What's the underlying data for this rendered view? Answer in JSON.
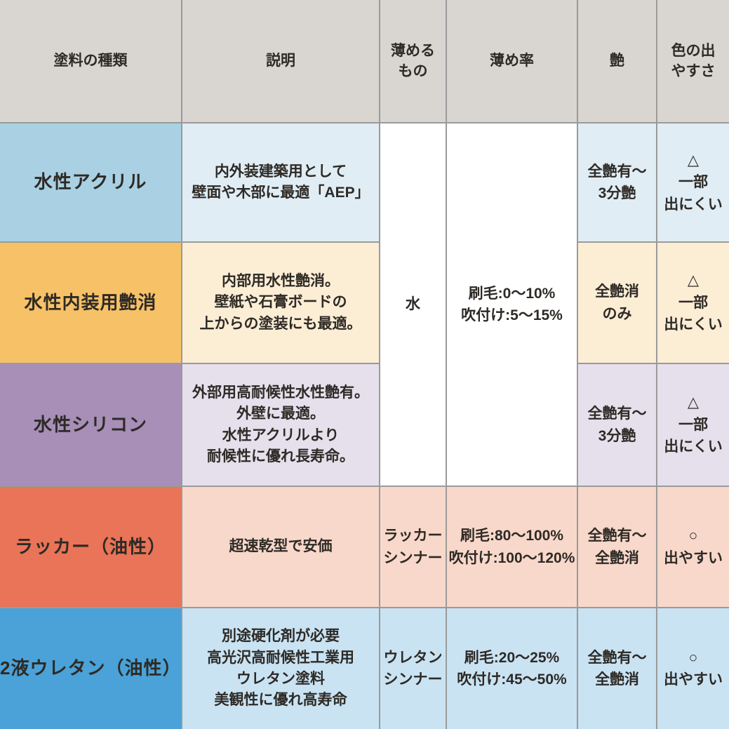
{
  "colors": {
    "border": "#9a9a9a",
    "header_bg": "#d9d6d1",
    "white_cell_bg": "#ffffff"
  },
  "header": {
    "paint_type": "塗料の種類",
    "description": "説明",
    "thinner": "薄める\nもの",
    "dilution_rate": "薄め率",
    "gloss": "艶",
    "color_ease": "色の出\nやすさ"
  },
  "merged_water_group": {
    "thinner": "水",
    "dilution_rate": "刷毛:0～10%\n吹付け:5～15%"
  },
  "rows": [
    {
      "name": "水性アクリル",
      "description": "内外装建築用として\n壁面や木部に最適「AEP」",
      "gloss": "全艶有～\n3分艶",
      "color_ease": "△\n一部\n出にくい",
      "colors": {
        "name_bg": "#a9d1e3",
        "light_bg": "#e0edf4"
      }
    },
    {
      "name": "水性内装用艶消",
      "description": "内部用水性艶消。\n壁紙や石膏ボードの\n上からの塗装にも最適。",
      "gloss": "全艶消\nのみ",
      "color_ease": "△\n一部\n出にくい",
      "colors": {
        "name_bg": "#f7c167",
        "light_bg": "#fcedd5"
      }
    },
    {
      "name": "水性シリコン",
      "description": "外部用高耐候性水性艶有。\n外壁に最適。\n水性アクリルより\n耐候性に優れ長寿命。",
      "gloss": "全艶有～\n3分艶",
      "color_ease": "△\n一部\n出にくい",
      "colors": {
        "name_bg": "#a78fb8",
        "light_bg": "#e6e0ec"
      }
    },
    {
      "name": "ラッカー（油性）",
      "description": "超速乾型で安価",
      "thinner": "ラッカー\nシンナー",
      "dilution_rate": "刷毛:80～100%\n吹付け:100～120%",
      "gloss": "全艶有～\n全艶消",
      "color_ease": "○\n出やすい",
      "colors": {
        "name_bg": "#e97457",
        "light_bg": "#f8d8ca"
      }
    },
    {
      "name": "2液ウレタン（油性）",
      "description": "別途硬化剤が必要\n高光沢高耐候性工業用\nウレタン塗料\n美観性に優れ高寿命",
      "thinner": "ウレタン\nシンナー",
      "dilution_rate": "刷毛:20～25%\n吹付け:45～50%",
      "gloss": "全艶有～\n全艶消",
      "color_ease": "○\n出やすい",
      "colors": {
        "name_bg": "#4aa2d8",
        "light_bg": "#c9e3f3"
      }
    }
  ]
}
